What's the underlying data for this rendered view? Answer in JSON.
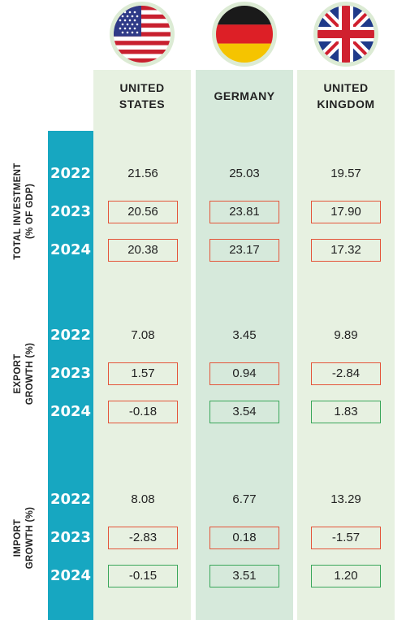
{
  "countries": [
    {
      "line1": "UNITED",
      "line2": "STATES",
      "flag_icon": "us-flag-icon"
    },
    {
      "line1": "GERMANY",
      "line2": "",
      "flag_icon": "germany-flag-icon"
    },
    {
      "line1": "UNITED",
      "line2": "KINGDOM",
      "flag_icon": "uk-flag-icon"
    }
  ],
  "colors": {
    "sidebar": "#17a7c1",
    "column_light": "#e7f1e1",
    "column_dark": "#d6e9db",
    "decrease_border": "#e4553a",
    "increase_border": "#3aa65a"
  },
  "sections": [
    {
      "label_line1": "TOTAL INVESTMENT",
      "label_line2": "(% OF GDP)",
      "rows": [
        {
          "year": "2022",
          "values": [
            {
              "v": "21.56",
              "mark": "none"
            },
            {
              "v": "25.03",
              "mark": "none"
            },
            {
              "v": "19.57",
              "mark": "none"
            }
          ]
        },
        {
          "year": "2023",
          "values": [
            {
              "v": "20.56",
              "mark": "red"
            },
            {
              "v": "23.81",
              "mark": "red"
            },
            {
              "v": "17.90",
              "mark": "red"
            }
          ]
        },
        {
          "year": "2024",
          "values": [
            {
              "v": "20.38",
              "mark": "red"
            },
            {
              "v": "23.17",
              "mark": "red"
            },
            {
              "v": "17.32",
              "mark": "red"
            }
          ]
        }
      ]
    },
    {
      "label_line1": "EXPORT",
      "label_line2": "GROWTH (%)",
      "rows": [
        {
          "year": "2022",
          "values": [
            {
              "v": "7.08",
              "mark": "none"
            },
            {
              "v": "3.45",
              "mark": "none"
            },
            {
              "v": "9.89",
              "mark": "none"
            }
          ]
        },
        {
          "year": "2023",
          "values": [
            {
              "v": "1.57",
              "mark": "red"
            },
            {
              "v": "0.94",
              "mark": "red"
            },
            {
              "v": "-2.84",
              "mark": "red"
            }
          ]
        },
        {
          "year": "2024",
          "values": [
            {
              "v": "-0.18",
              "mark": "red"
            },
            {
              "v": "3.54",
              "mark": "green"
            },
            {
              "v": "1.83",
              "mark": "green"
            }
          ]
        }
      ]
    },
    {
      "label_line1": "IMPORT",
      "label_line2": "GROWTH (%)",
      "rows": [
        {
          "year": "2022",
          "values": [
            {
              "v": "8.08",
              "mark": "none"
            },
            {
              "v": "6.77",
              "mark": "none"
            },
            {
              "v": "13.29",
              "mark": "none"
            }
          ]
        },
        {
          "year": "2023",
          "values": [
            {
              "v": "-2.83",
              "mark": "red"
            },
            {
              "v": "0.18",
              "mark": "red"
            },
            {
              "v": "-1.57",
              "mark": "red"
            }
          ]
        },
        {
          "year": "2024",
          "values": [
            {
              "v": "-0.15",
              "mark": "green"
            },
            {
              "v": "3.51",
              "mark": "green"
            },
            {
              "v": "1.20",
              "mark": "green"
            }
          ]
        }
      ]
    }
  ]
}
